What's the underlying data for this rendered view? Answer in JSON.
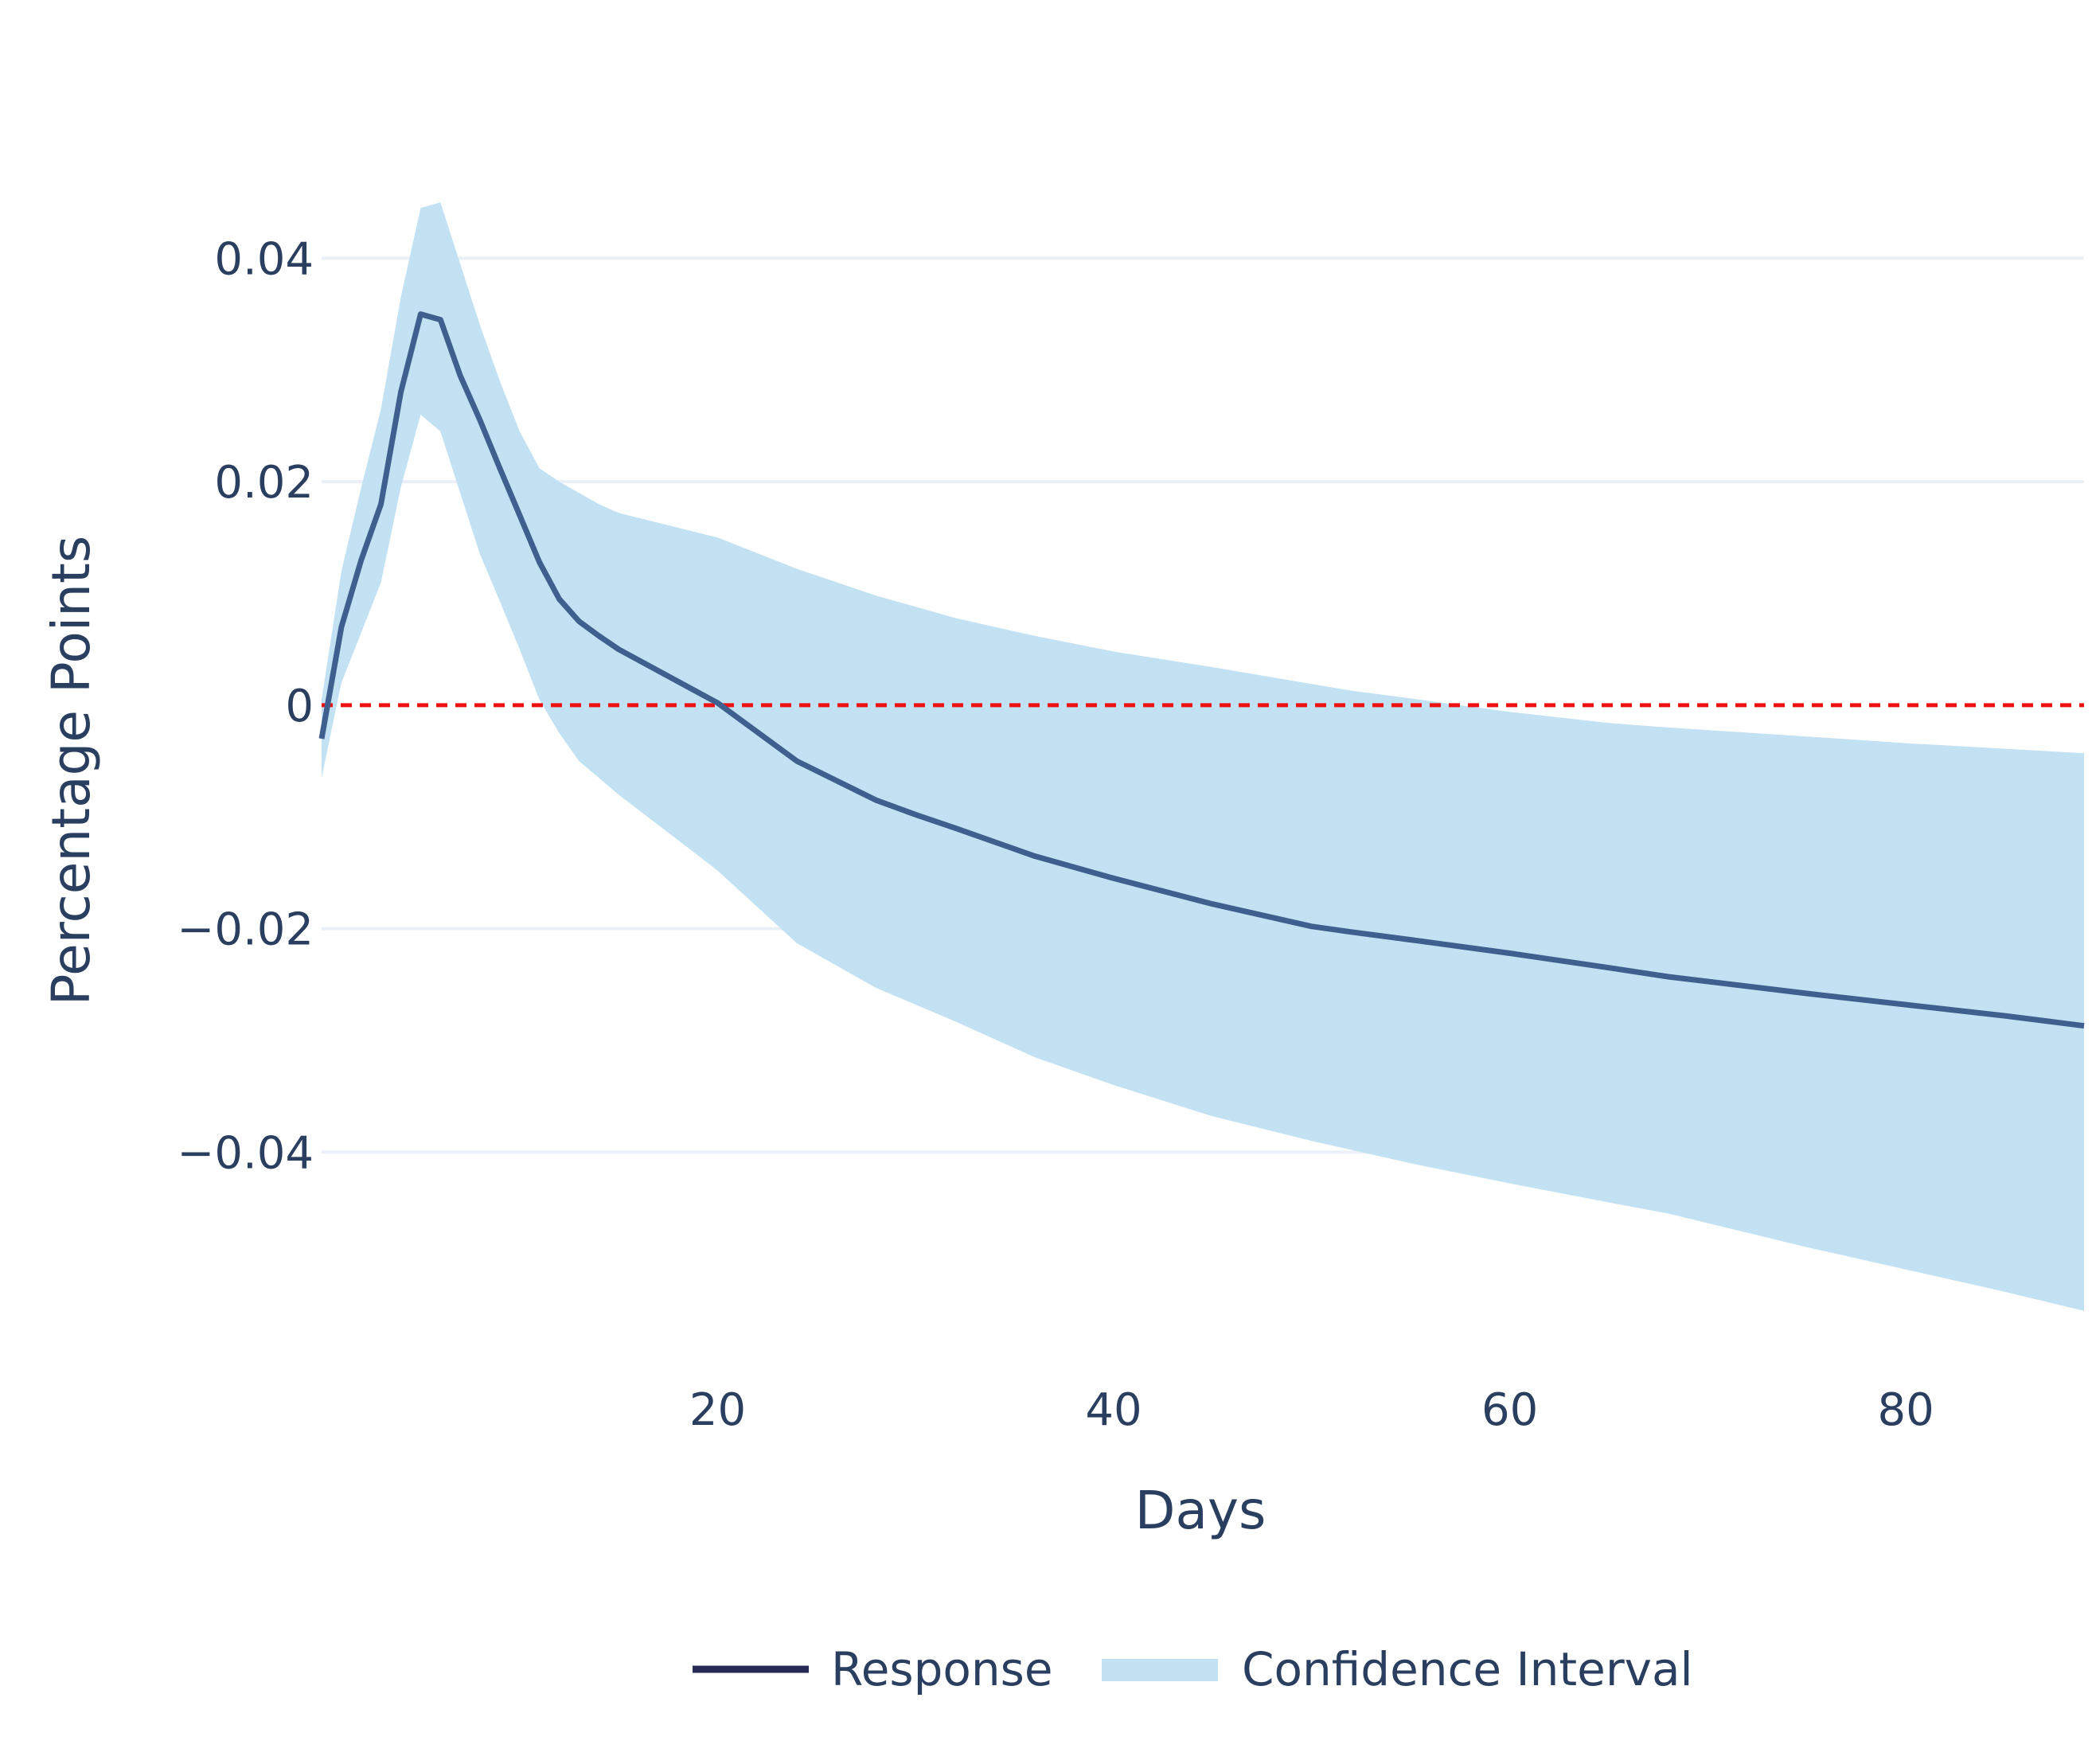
{
  "chart_data": {
    "type": "line",
    "title": "",
    "xlabel": "Days",
    "ylabel": "Percentage Points",
    "xlim": [
      0,
      89
    ],
    "ylim": [
      -0.058,
      0.051
    ],
    "xticks": [
      20,
      40,
      60,
      80
    ],
    "yticks": [
      0.04,
      0.02,
      0,
      -0.02,
      -0.04
    ],
    "ytick_labels": [
      "0.04",
      "0.02",
      "0",
      "−0.02",
      "−0.04"
    ],
    "grid": "horizontal",
    "legend_placement": "bottom-center",
    "reference_line": {
      "y": 0,
      "color": "#ee1111",
      "style": "dashed"
    },
    "series": [
      {
        "name": "Response",
        "color": "#3f5f8f",
        "legend_color": "#262a55",
        "x": [
          0,
          1,
          2,
          3,
          4,
          5,
          6,
          7,
          8,
          9,
          10,
          11,
          12,
          13,
          14,
          15,
          20,
          24,
          28,
          30,
          32,
          36,
          40,
          45,
          50,
          52,
          55,
          60,
          65,
          68,
          75,
          80,
          85,
          89
        ],
        "y": [
          -0.003,
          0.007,
          0.013,
          0.018,
          0.028,
          0.035,
          0.0345,
          0.0295,
          0.0255,
          0.0212,
          0.017,
          0.0128,
          0.0095,
          0.0075,
          0.0062,
          0.005,
          0.0002,
          -0.005,
          -0.0085,
          -0.0098,
          -0.011,
          -0.0135,
          -0.0155,
          -0.0178,
          -0.0198,
          -0.0203,
          -0.021,
          -0.0222,
          -0.0235,
          -0.0243,
          -0.0258,
          -0.0268,
          -0.0278,
          -0.0287
        ]
      },
      {
        "name": "Confidence Interval",
        "type": "band",
        "color": "#c2e1f2",
        "x": [
          0,
          1,
          2,
          3,
          4,
          5,
          6,
          7,
          8,
          9,
          10,
          11,
          12,
          13,
          14,
          15,
          20,
          24,
          28,
          30,
          32,
          36,
          40,
          45,
          50,
          52,
          55,
          60,
          65,
          68,
          75,
          80,
          85,
          89
        ],
        "lower": [
          -0.0065,
          0.002,
          0.0065,
          0.011,
          0.0195,
          0.026,
          0.0245,
          0.019,
          0.0135,
          0.0093,
          0.005,
          0.0005,
          -0.0025,
          -0.005,
          -0.0065,
          -0.008,
          -0.0148,
          -0.0213,
          -0.0253,
          -0.0268,
          -0.0283,
          -0.0315,
          -0.034,
          -0.0368,
          -0.039,
          -0.0398,
          -0.041,
          -0.0428,
          -0.0445,
          -0.0455,
          -0.0485,
          -0.0505,
          -0.0525,
          -0.0542
        ],
        "upper": [
          0.0005,
          0.012,
          0.0195,
          0.0265,
          0.0365,
          0.0445,
          0.045,
          0.0395,
          0.034,
          0.029,
          0.0245,
          0.0212,
          0.02,
          0.019,
          0.018,
          0.0172,
          0.015,
          0.0122,
          0.0098,
          0.0088,
          0.0078,
          0.0062,
          0.0048,
          0.0034,
          0.0019,
          0.0013,
          0.0006,
          -0.0006,
          -0.0016,
          -0.002,
          -0.0028,
          -0.0034,
          -0.0039,
          -0.0043
        ]
      }
    ]
  }
}
